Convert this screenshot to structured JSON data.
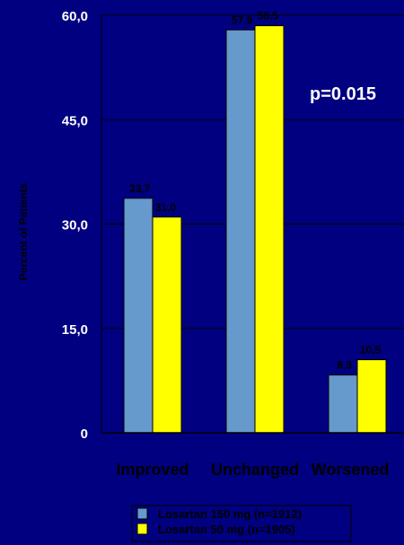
{
  "chart_data": {
    "type": "bar",
    "categories": [
      "Improved",
      "Unchanged",
      "Worsened"
    ],
    "series": [
      {
        "name": "Losartan 150 mg (n=1912)",
        "values": [
          33.7,
          57.9,
          8.3
        ],
        "labels": [
          "33,7",
          "57,9",
          "8,3"
        ]
      },
      {
        "name": "Losartan 50 mg (n=1905)",
        "values": [
          31.0,
          58.5,
          10.5
        ],
        "labels": [
          "31,0",
          "58,5",
          "10,5"
        ]
      }
    ],
    "ylabel": "Percent of Patients",
    "xlabel": "",
    "ylim": [
      0,
      60
    ],
    "yticks": [
      {
        "value": 0,
        "label": "0"
      },
      {
        "value": 15,
        "label": "15,0"
      },
      {
        "value": 30,
        "label": "30,0"
      },
      {
        "value": 45,
        "label": "45,0"
      },
      {
        "value": 60,
        "label": "60,0"
      }
    ],
    "annotation": "p=0.015",
    "grid": true,
    "legend_position": "bottom",
    "colors": {
      "background": "#000080",
      "series": [
        "#6699cc",
        "#ffff00"
      ],
      "gridline": "#000000",
      "tick_text": "#ffffff",
      "category_text": "#000000"
    }
  }
}
